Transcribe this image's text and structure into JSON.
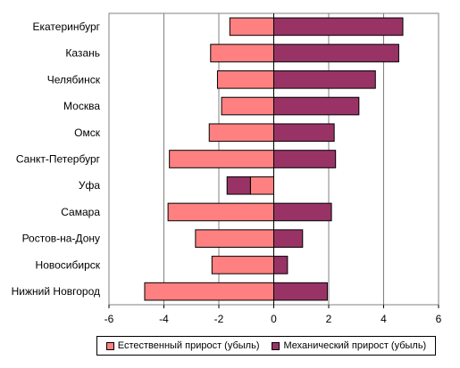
{
  "chart_data": {
    "type": "bar",
    "orientation": "horizontal",
    "stacked": true,
    "title": "",
    "xlabel": "",
    "ylabel": "",
    "xlim": [
      -6,
      6
    ],
    "xticks": [
      -6,
      -4,
      -2,
      0,
      2,
      4,
      6
    ],
    "grid": true,
    "legend_position": "bottom",
    "categories": [
      "Екатеринбург",
      "Казань",
      "Челябинск",
      "Москва",
      "Омск",
      "Санкт-Петербург",
      "Уфа",
      "Самара",
      "Ростов-на-Дону",
      "Новосибирск",
      "Нижний Новгород"
    ],
    "series": [
      {
        "name": "Естественный прирост (убыль)",
        "color": "#ff8080",
        "values": [
          -1.6,
          -2.3,
          -2.05,
          -1.9,
          -2.35,
          -3.8,
          -0.85,
          -3.85,
          -2.85,
          -2.25,
          -4.7
        ]
      },
      {
        "name": "Механический прирост (убыль)",
        "color": "#993366",
        "values": [
          4.7,
          4.55,
          3.7,
          3.1,
          2.2,
          2.25,
          -0.85,
          2.1,
          1.05,
          0.5,
          1.95
        ]
      }
    ]
  }
}
